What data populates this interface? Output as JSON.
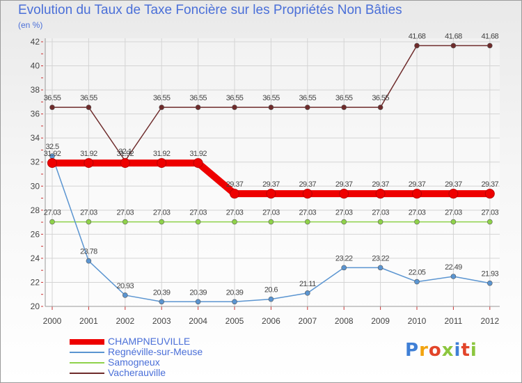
{
  "title": "Evolution du Taux de Taxe Foncière sur les Propriétés Non Bâties",
  "subtitle": "(en %)",
  "logo": "Proxiti",
  "chart_data": {
    "type": "line",
    "title": "Evolution du Taux de Taxe Foncière sur les Propriétés Non Bâties",
    "ylabel": "(en %)",
    "xlabel": "",
    "ylim": [
      20,
      42
    ],
    "yticks": [
      20,
      22,
      24,
      26,
      28,
      30,
      32,
      34,
      36,
      38,
      40,
      42
    ],
    "x": [
      "2000",
      "2001",
      "2002",
      "2003",
      "2004",
      "2005",
      "2006",
      "2007",
      "2008",
      "2009",
      "2010",
      "2011",
      "2012"
    ],
    "series": [
      {
        "name": "Vacherauville",
        "color": "#6e2b2b",
        "values": [
          36.55,
          36.55,
          32.1,
          36.55,
          36.55,
          36.55,
          36.55,
          36.55,
          36.55,
          36.55,
          41.68,
          41.68,
          41.68
        ],
        "labels": [
          "36.55",
          "36.55",
          "32.1",
          "36.55",
          "36.55",
          "36.55",
          "36.55",
          "36.55",
          "36.55",
          "36.55",
          "41.68",
          "41.68",
          "41.68"
        ]
      },
      {
        "name": "Samogneux",
        "color": "#8fd24a",
        "values": [
          27.03,
          27.03,
          27.03,
          27.03,
          27.03,
          27.03,
          27.03,
          27.03,
          27.03,
          27.03,
          27.03,
          27.03,
          27.03
        ],
        "labels": [
          "27.03",
          "27.03",
          "27.03",
          "27.03",
          "27.03",
          "27.03",
          "27.03",
          "27.03",
          "27.03",
          "27.03",
          "27.03",
          "27.03",
          "27.03"
        ]
      },
      {
        "name": "Regnéville-sur-Meuse",
        "color": "#5b95d1",
        "values": [
          32.5,
          23.78,
          20.93,
          20.39,
          20.39,
          20.39,
          20.6,
          21.11,
          23.22,
          23.22,
          22.05,
          22.49,
          21.93
        ],
        "labels": [
          "32.5",
          "23.78",
          "20.93",
          "20.39",
          "20.39",
          "20.39",
          "20.6",
          "21.11",
          "23.22",
          "23.22",
          "22.05",
          "22.49",
          "21.93"
        ]
      },
      {
        "name": "CHAMPNEUVILLE",
        "color": "#ee0000",
        "values": [
          31.92,
          31.92,
          31.92,
          31.92,
          31.92,
          29.37,
          29.37,
          29.37,
          29.37,
          29.37,
          29.37,
          29.37,
          29.37
        ],
        "labels": [
          "31.92",
          "31.92",
          "31.92",
          "31.92",
          "31.92",
          "29.37",
          "29.37",
          "29.37",
          "29.37",
          "29.37",
          "29.37",
          "29.37",
          "29.37"
        ]
      }
    ],
    "legend": [
      "CHAMPNEUVILLE",
      "Regnéville-sur-Meuse",
      "Samogneux",
      "Vacherauville"
    ],
    "legend_position": "bottom-left"
  }
}
